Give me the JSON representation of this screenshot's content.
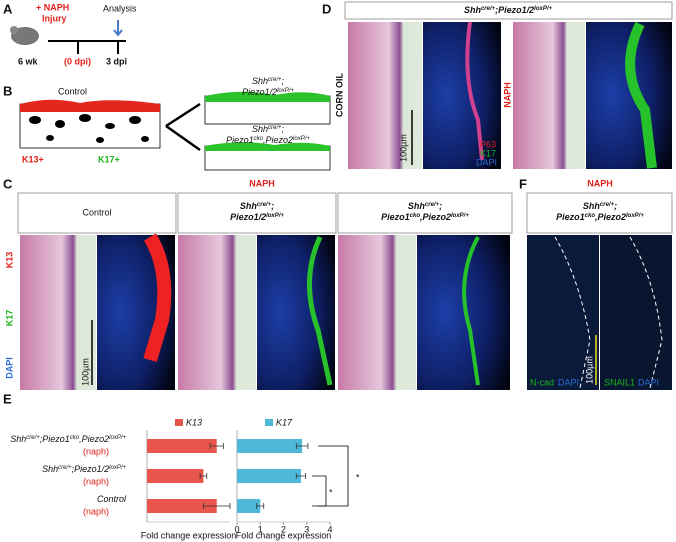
{
  "panel_a": {
    "label": "A",
    "treatment": "+ NAPH",
    "injury": "Injury",
    "age": "6 wk",
    "day0": "(0 dpi)",
    "analysis": "Analysis",
    "day3": "3 dpi"
  },
  "panel_b": {
    "label": "B",
    "control": "Control",
    "k13": "K13+",
    "k17": "K17+",
    "genotype_1": [
      [
        "Shh",
        "cre/+",
        ";"
      ],
      [
        "Piezo1/2",
        "loxP/+"
      ]
    ],
    "genotype_2": [
      [
        "Shh",
        "cre/+",
        ";"
      ],
      [
        "Piezo1",
        "cko",
        ",Piezo2",
        "loxP/+"
      ]
    ]
  },
  "panel_c": {
    "label": "C",
    "condition": "NAPH",
    "control": "Control",
    "genotype_1": [
      [
        "Shh",
        "cre/+",
        ";"
      ],
      [
        "Piezo1/2",
        "loxP/+"
      ]
    ],
    "genotype_2": [
      [
        "Shh",
        "cre/+",
        ";"
      ],
      [
        "Piezo1",
        "cko",
        ",Piezo2",
        "loxP/+"
      ]
    ],
    "stain_k13": "K13",
    "stain_k17": "K17",
    "stain_dapi": "DAPI",
    "scale": "100µm"
  },
  "panel_d": {
    "label": "D",
    "genotype": [
      [
        "Shh",
        "cre/+",
        ";Piezo1/2",
        "loxP/+"
      ]
    ],
    "row_1": "CORN OIL",
    "row_2": "NAPH",
    "stain_p63": "P63",
    "stain_k17": "K17",
    "stain_dapi": "DAPI",
    "scale": "100µm"
  },
  "panel_f": {
    "label": "F",
    "condition": "NAPH",
    "genotype": [
      [
        "Shh",
        "cre/+",
        ";"
      ],
      [
        "Piezo1",
        "cko",
        ",Piezo2",
        "loxP/+"
      ]
    ],
    "stain_1a": "N-cad",
    "stain_1b": "DAPI",
    "stain_2a": "SNAIL1",
    "stain_2b": "DAPI",
    "scale": "100µm"
  },
  "panel_e": {
    "label": "E",
    "rows": [
      {
        "genotype": [
          "Shh",
          "cre/+",
          ";Piezo1",
          "cko",
          ",Piezo2",
          "loxP/+"
        ],
        "treatment": "(naph)"
      },
      {
        "genotype": [
          "Shh",
          "cre/+",
          ";Piezo1/2",
          "loxP/+"
        ],
        "treatment": "(naph)"
      },
      {
        "genotype": [
          "Control"
        ],
        "treatment": "(naph)"
      }
    ],
    "significance": [
      "*",
      "*"
    ]
  },
  "chart_data": [
    {
      "type": "hbar",
      "xlabel": "Fold change expression",
      "xlim": [
        0,
        1.25
      ],
      "series": [
        {
          "name": "K13",
          "color": "#e8554a",
          "values": [
            1.05,
            0.85,
            1.05
          ],
          "errors": [
            0.1,
            0.05,
            0.2
          ]
        }
      ]
    },
    {
      "type": "hbar",
      "xlabel": "Fold change expression",
      "xlim": [
        0,
        4
      ],
      "xticks": [
        0,
        1,
        2,
        3,
        4
      ],
      "series": [
        {
          "name": "K17",
          "color": "#4db8d8",
          "values": [
            2.8,
            2.75,
            1.0
          ],
          "errors": [
            0.25,
            0.2,
            0.15
          ]
        }
      ]
    }
  ]
}
